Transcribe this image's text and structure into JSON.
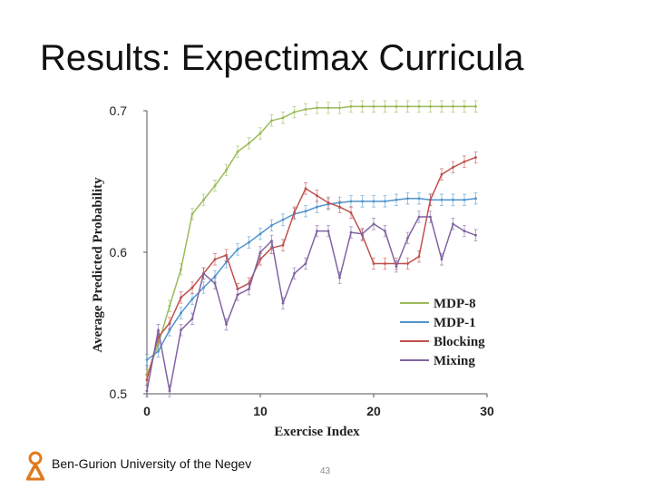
{
  "slide": {
    "title": "Results: Expectimax Curricula",
    "footer": "Ben-Gurion University of the Negev",
    "page_number": "43"
  },
  "chart_data": {
    "type": "line",
    "title": "",
    "xlabel": "Exercise Index",
    "ylabel": "Average Predicted Probability",
    "xlim": [
      0,
      30
    ],
    "ylim": [
      0.5,
      0.7
    ],
    "xticks": [
      "0",
      "10",
      "20",
      "30"
    ],
    "yticks": [
      "0.5",
      "0.6",
      "0.7"
    ],
    "grid": false,
    "legend_position": "bottom-right",
    "x": [
      0,
      1,
      2,
      3,
      4,
      5,
      6,
      7,
      8,
      9,
      10,
      11,
      12,
      13,
      14,
      15,
      16,
      17,
      18,
      19,
      20,
      21,
      22,
      23,
      24,
      25,
      26,
      27,
      28,
      29
    ],
    "series": [
      {
        "name": "MDP-8",
        "color": "#9bbb59",
        "values": [
          0.513,
          0.535,
          0.562,
          0.588,
          0.627,
          0.637,
          0.647,
          0.658,
          0.671,
          0.677,
          0.684,
          0.693,
          0.695,
          0.699,
          0.701,
          0.702,
          0.702,
          0.702,
          0.703,
          0.703,
          0.703,
          0.703,
          0.703,
          0.703,
          0.703,
          0.703,
          0.703,
          0.703,
          0.703,
          0.703
        ]
      },
      {
        "name": "MDP-1",
        "color": "#4f94cd",
        "values": [
          0.524,
          0.53,
          0.545,
          0.557,
          0.567,
          0.575,
          0.583,
          0.593,
          0.602,
          0.607,
          0.613,
          0.619,
          0.623,
          0.627,
          0.629,
          0.632,
          0.634,
          0.635,
          0.636,
          0.636,
          0.636,
          0.636,
          0.637,
          0.638,
          0.638,
          0.637,
          0.637,
          0.637,
          0.637,
          0.638
        ]
      },
      {
        "name": "Blocking",
        "color": "#c0504d",
        "values": [
          0.51,
          0.54,
          0.55,
          0.568,
          0.575,
          0.585,
          0.595,
          0.598,
          0.574,
          0.578,
          0.595,
          0.603,
          0.605,
          0.628,
          0.645,
          0.64,
          0.635,
          0.632,
          0.628,
          0.612,
          0.592,
          0.592,
          0.592,
          0.592,
          0.597,
          0.637,
          0.655,
          0.66,
          0.664,
          0.667
        ]
      },
      {
        "name": "Mixing",
        "color": "#8064a2",
        "values": [
          0.502,
          0.545,
          0.502,
          0.545,
          0.553,
          0.585,
          0.578,
          0.549,
          0.57,
          0.574,
          0.6,
          0.608,
          0.564,
          0.585,
          0.592,
          0.615,
          0.615,
          0.582,
          0.614,
          0.613,
          0.62,
          0.615,
          0.59,
          0.61,
          0.625,
          0.625,
          0.595,
          0.62,
          0.615,
          0.612
        ]
      }
    ]
  }
}
